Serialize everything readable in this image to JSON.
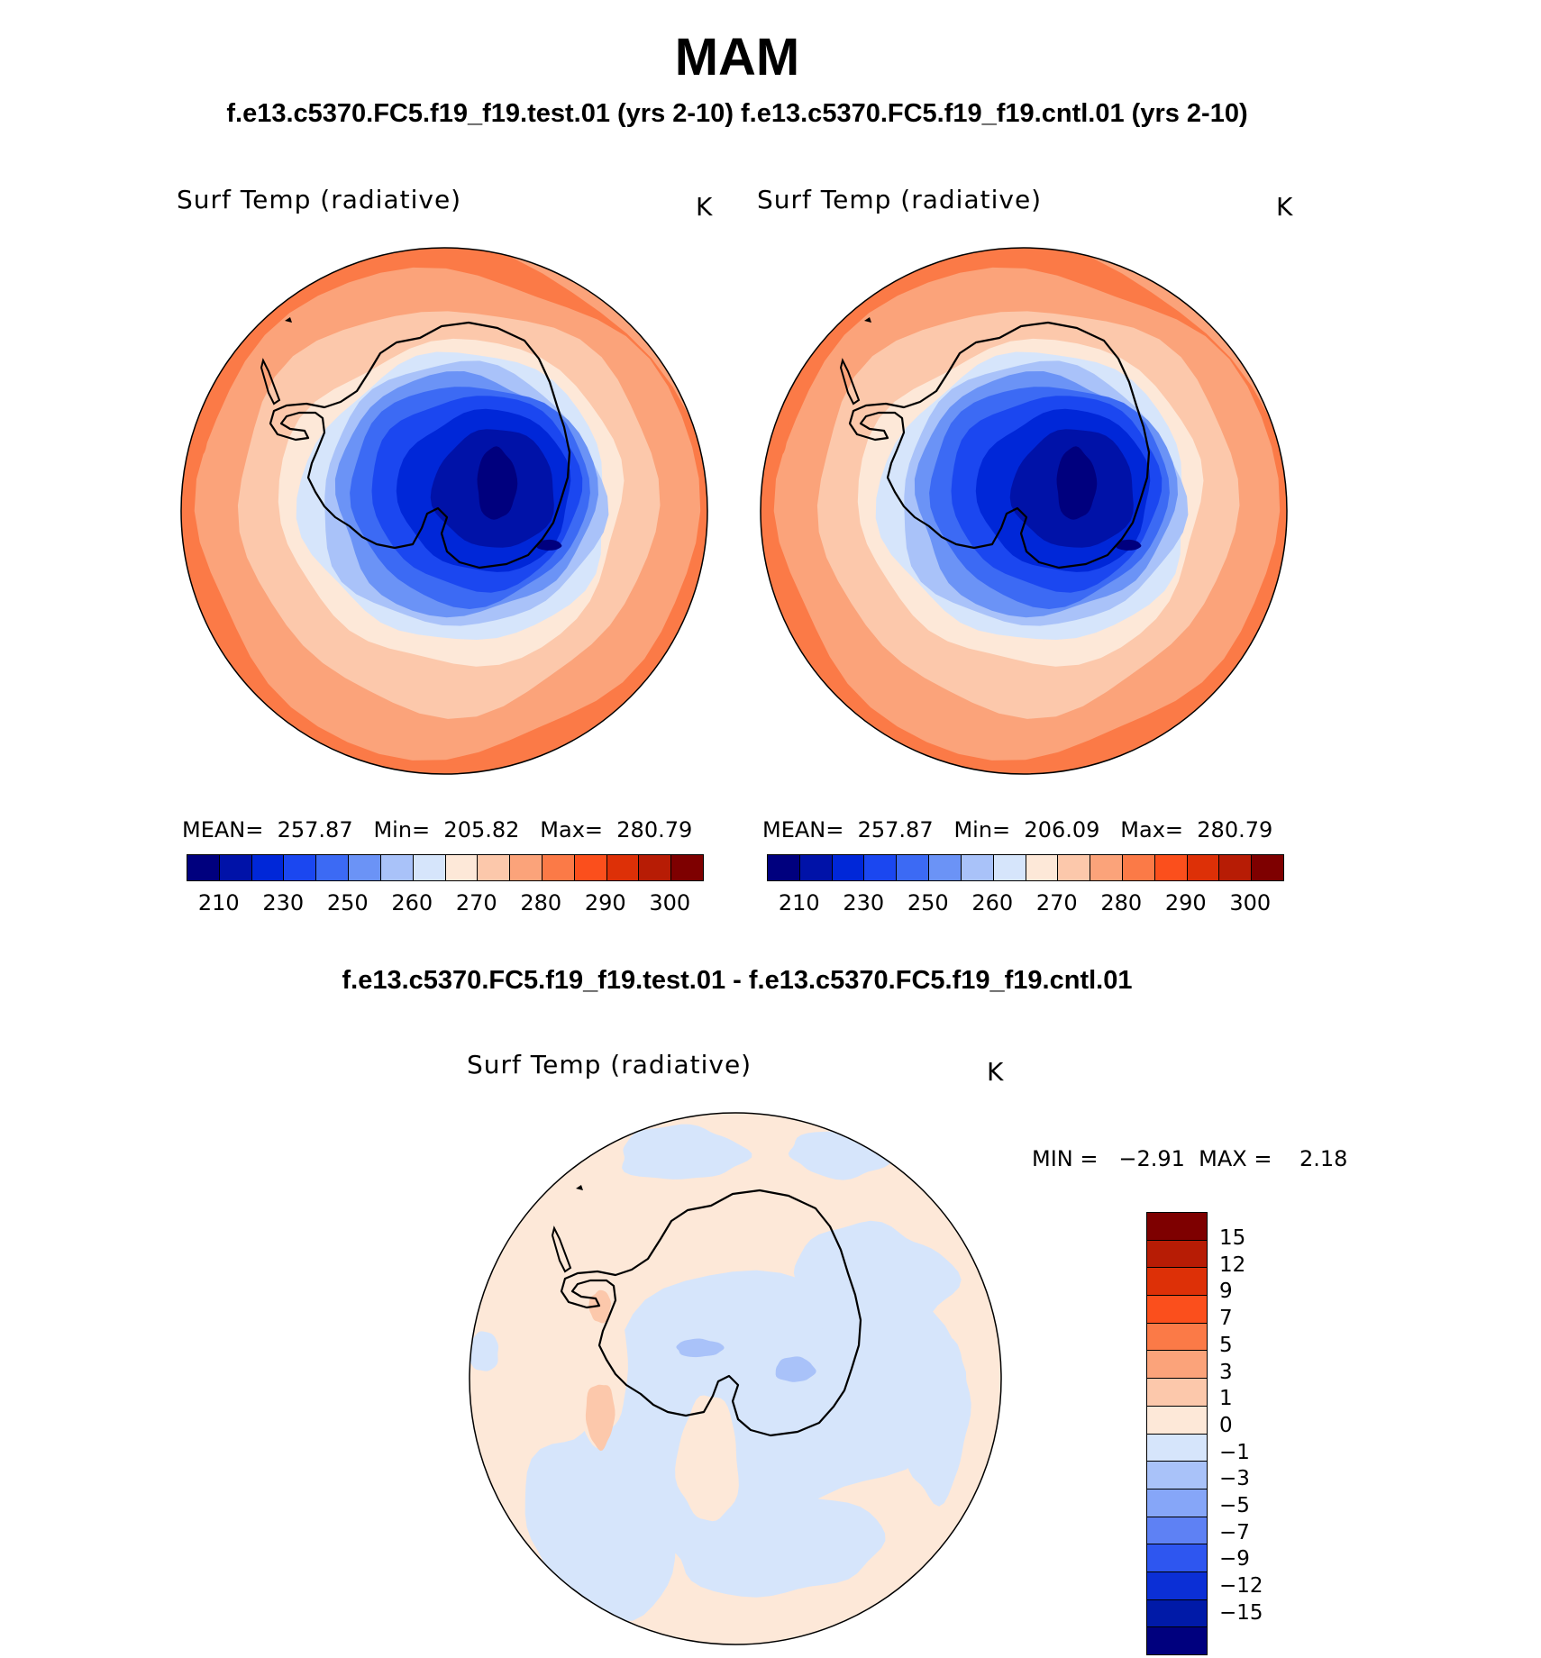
{
  "title": "MAM",
  "subtitle": "f.e13.c5370.FC5.f19_f19.test.01 (yrs 2-10) f.e13.c5370.FC5.f19_f19.cntl.01 (yrs 2-10)",
  "panels": [
    {
      "variable": "Surf Temp (radiative)",
      "units": "K",
      "stats": "MEAN=  257.87   Min=  205.82   Max=  280.79"
    },
    {
      "variable": "Surf Temp (radiative)",
      "units": "K",
      "stats": "MEAN=  257.87   Min=  206.09   Max=  280.79"
    }
  ],
  "abs_colorbar": {
    "colors": [
      "#00007e",
      "#0012a8",
      "#0027d8",
      "#1b47f0",
      "#3c6af4",
      "#6b93f6",
      "#a9c2f9",
      "#d6e5fb",
      "#fde8d8",
      "#fcc8ab",
      "#fba37a",
      "#fb7a47",
      "#fb4f1c",
      "#dd3007",
      "#b71c05",
      "#7e0000"
    ],
    "ticks": [
      "210",
      "230",
      "250",
      "260",
      "270",
      "280",
      "290",
      "300"
    ]
  },
  "diff": {
    "title": "f.e13.c5370.FC5.f19_f19.test.01 - f.e13.c5370.FC5.f19_f19.cntl.01",
    "variable": "Surf Temp (radiative)",
    "units": "K",
    "stats": "MIN =   −2.91  MAX =    2.18",
    "colors": [
      "#7e0000",
      "#b71c05",
      "#dd3007",
      "#fb4f1c",
      "#fb7a47",
      "#fba37a",
      "#fcc8ab",
      "#fde8d8",
      "#d6e5fb",
      "#a9c2f9",
      "#86a6f8",
      "#5e81f4",
      "#2e56f0",
      "#0b2fd6",
      "#001aa8",
      "#00007e"
    ],
    "ticks": [
      "15",
      "12",
      "9",
      "7",
      "5",
      "3",
      "1",
      "0",
      "−1",
      "−3",
      "−5",
      "−7",
      "−9",
      "−12",
      "−15"
    ]
  },
  "chart_data": {
    "type": "heatmap",
    "title": "MAM",
    "season": "MAM",
    "projection": "south polar stereographic",
    "maps": [
      {
        "case": "f.e13.c5370.FC5.f19_f19.test.01 (yrs 2-10)",
        "variable": "Surf Temp (radiative)",
        "units": "K",
        "mean": 257.87,
        "min": 205.82,
        "max": 280.79
      },
      {
        "case": "f.e13.c5370.FC5.f19_f19.cntl.01 (yrs 2-10)",
        "variable": "Surf Temp (radiative)",
        "units": "K",
        "mean": 257.87,
        "min": 206.09,
        "max": 280.79
      },
      {
        "case": "f.e13.c5370.FC5.f19_f19.test.01 - f.e13.c5370.FC5.f19_f19.cntl.01",
        "variable": "Surf Temp (radiative)",
        "units": "K",
        "min": -2.91,
        "max": 2.18
      }
    ],
    "abs_levels": [
      210,
      230,
      250,
      260,
      270,
      280,
      290,
      300
    ],
    "diff_levels": [
      15,
      12,
      9,
      7,
      5,
      3,
      1,
      0,
      -1,
      -3,
      -5,
      -7,
      -9,
      -12,
      -15
    ]
  }
}
